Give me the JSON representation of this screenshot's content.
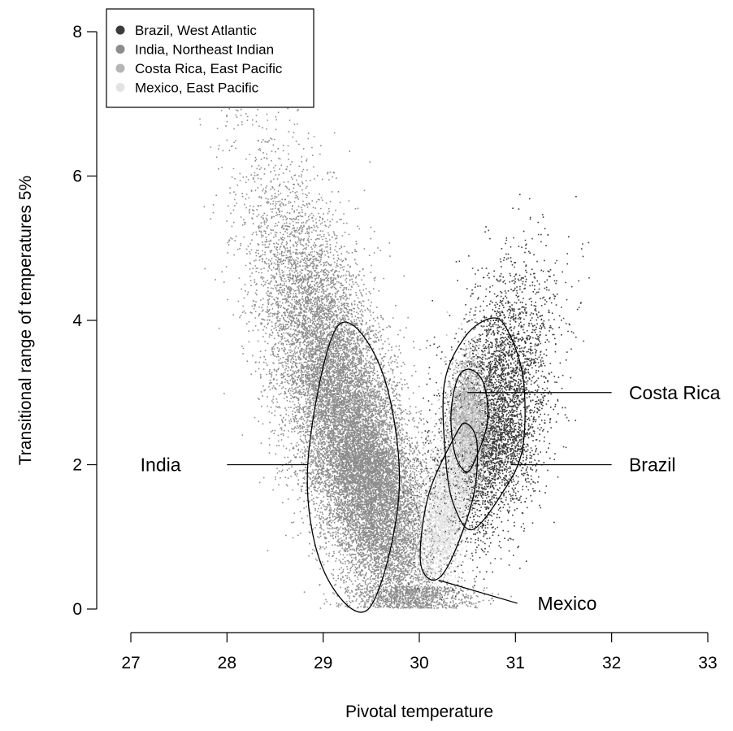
{
  "chart_data": {
    "type": "scatter",
    "title": "",
    "xlabel": "Pivotal temperature",
    "ylabel": "Transitional range of temperatures 5%",
    "xlim": [
      27,
      33
    ],
    "ylim": [
      0,
      8
    ],
    "x_ticks": [
      "27",
      "28",
      "29",
      "30",
      "31",
      "32",
      "33"
    ],
    "y_ticks": [
      "0",
      "2",
      "4",
      "6",
      "8"
    ],
    "grid": false,
    "legend_position": "top-left",
    "series": [
      {
        "name": "India, Northeast Indian",
        "color": "#8c8c8c",
        "center": [
          29.35,
          2.2
        ],
        "spread": [
          0.3,
          1.25
        ],
        "tilt": -0.22,
        "count": 17000
      },
      {
        "name": "Brazil, West Atlantic",
        "color": "#3b3b3b",
        "center": [
          30.75,
          2.55
        ],
        "spread": [
          0.26,
          0.75
        ],
        "tilt": 0.14,
        "count": 5000
      },
      {
        "name": "Costa Rica, East Pacific",
        "color": "#b5b5b5",
        "center": [
          30.5,
          2.6
        ],
        "spread": [
          0.1,
          0.35
        ],
        "tilt": 0.0,
        "count": 2200
      },
      {
        "name": "Mexico, East Pacific",
        "color": "#e3e3e3",
        "center": [
          30.3,
          1.5
        ],
        "spread": [
          0.14,
          0.55
        ],
        "tilt": 0.17,
        "count": 3000
      }
    ],
    "ellipses": [
      {
        "series": "India, Northeast Indian",
        "points": [
          [
            29.47,
            0.0
          ],
          [
            29.79,
            1.62
          ],
          [
            29.61,
            3.3
          ],
          [
            29.15,
            3.92
          ],
          [
            28.84,
            2.0
          ],
          [
            29.0,
            0.55
          ]
        ]
      },
      {
        "series": "Brazil, West Atlantic",
        "points": [
          [
            30.55,
            1.1
          ],
          [
            30.84,
            1.56
          ],
          [
            31.07,
            2.2
          ],
          [
            31.08,
            3.2
          ],
          [
            30.91,
            3.88
          ],
          [
            30.75,
            4.03
          ],
          [
            30.48,
            3.78
          ],
          [
            30.26,
            3.12
          ],
          [
            30.28,
            2.0
          ],
          [
            30.37,
            1.4
          ]
        ]
      },
      {
        "series": "Costa Rica, East Pacific",
        "points": [
          [
            30.49,
            1.9
          ],
          [
            30.59,
            2.1
          ],
          [
            30.71,
            2.6
          ],
          [
            30.67,
            3.12
          ],
          [
            30.53,
            3.32
          ],
          [
            30.4,
            3.2
          ],
          [
            30.33,
            2.7
          ],
          [
            30.37,
            2.15
          ]
        ]
      },
      {
        "series": "Mexico, East Pacific",
        "points": [
          [
            30.15,
            0.4
          ],
          [
            30.33,
            0.68
          ],
          [
            30.56,
            1.55
          ],
          [
            30.6,
            2.3
          ],
          [
            30.49,
            2.57
          ],
          [
            30.38,
            2.42
          ],
          [
            30.1,
            1.6
          ],
          [
            30.01,
            0.68
          ]
        ]
      }
    ],
    "annotations": [
      {
        "text": "India",
        "anchor": "end",
        "label_at": [
          27.52,
          2.0
        ],
        "line_from": [
          28.0,
          2.0
        ],
        "line_to": [
          28.84,
          2.0
        ]
      },
      {
        "text": "Costa Rica",
        "anchor": "start",
        "label_at": [
          32.18,
          3.0
        ],
        "line_from": [
          30.5,
          3.0
        ],
        "line_to": [
          32.0,
          3.0
        ]
      },
      {
        "text": "Brazil",
        "anchor": "start",
        "label_at": [
          32.18,
          2.0
        ],
        "line_from": [
          30.95,
          2.0
        ],
        "line_to": [
          32.0,
          2.0
        ]
      },
      {
        "text": "Mexico",
        "anchor": "start",
        "label_at": [
          31.23,
          0.08
        ],
        "line_from": [
          30.2,
          0.4
        ],
        "line_to": [
          31.02,
          0.08
        ]
      }
    ]
  }
}
